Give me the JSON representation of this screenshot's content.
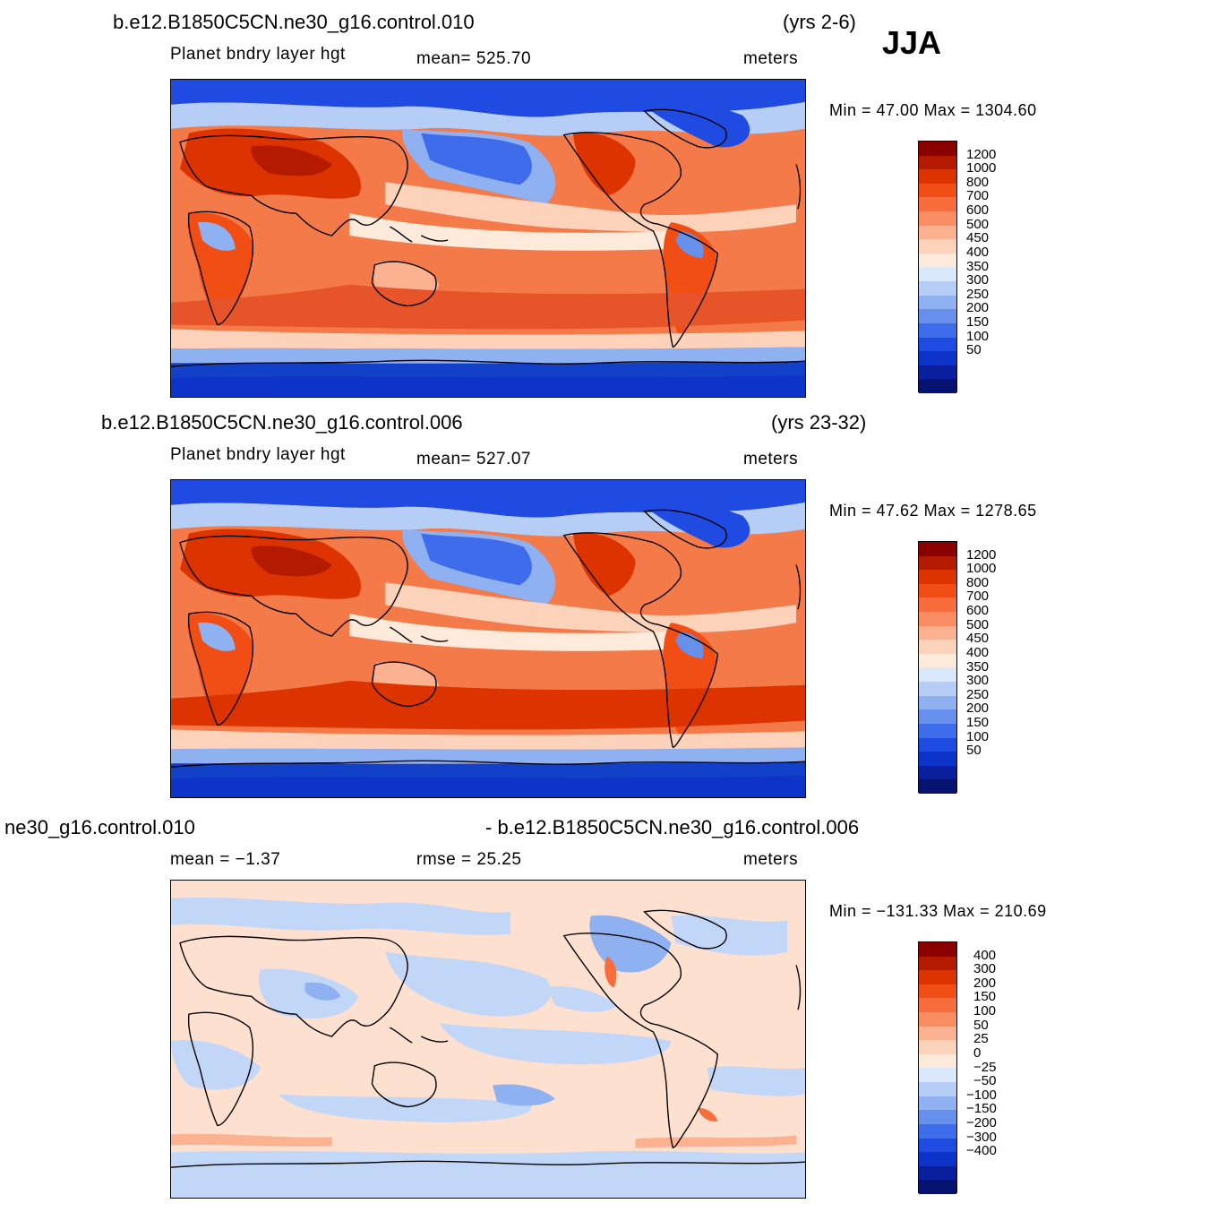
{
  "season": "JJA",
  "panels": [
    {
      "case_title": "b.e12.B1850C5CN.ne30_g16.control.010",
      "years": "(yrs 2-6)",
      "variable": "Planet  bndry  layer  hgt",
      "stat1": "mean=  525.70",
      "stat2": "",
      "units": "meters",
      "minmax": "Min  =    47.00  Max  =  1304.60"
    },
    {
      "case_title": "b.e12.B1850C5CN.ne30_g16.control.006",
      "years": "(yrs 23-32)",
      "variable": "Planet  bndry  layer  hgt",
      "stat1": "mean=  527.07",
      "stat2": "",
      "units": "meters",
      "minmax": "Min  =    47.62  Max  =  1278.65"
    },
    {
      "case_title": "ne30_g16.control.010",
      "case_title_right": "- b.e12.B1850C5CN.ne30_g16.control.006",
      "variable": "mean  =    −1.37",
      "stat2": "rmse  =    25.25",
      "units": "meters",
      "minmax": "Min  =  −131.33  Max  =  210.69"
    }
  ],
  "colorbar_abs": {
    "labels": [
      "1200",
      "1000",
      "800",
      "700",
      "600",
      "500",
      "450",
      "400",
      "350",
      "300",
      "250",
      "200",
      "150",
      "100",
      "50"
    ],
    "colors": [
      "#8b0000",
      "#b31a00",
      "#dd3300",
      "#f04e14",
      "#f76e3c",
      "#fa8e62",
      "#fcb190",
      "#fdd2bb",
      "#feeadb",
      "#d9e8fb",
      "#b6cdf6",
      "#8fb1f1",
      "#6690ec",
      "#3e6cea",
      "#1f4be3",
      "#0d33c9",
      "#0a1f9e",
      "#071270"
    ]
  },
  "colorbar_diff": {
    "labels": [
      "400",
      "300",
      "200",
      "150",
      "100",
      "50",
      "25",
      "0",
      "−25",
      "−50",
      "−100",
      "−150",
      "−200",
      "−300",
      "−400"
    ],
    "colors": [
      "#8b0000",
      "#b31a00",
      "#dd3300",
      "#f04e14",
      "#f76e3c",
      "#fa8e62",
      "#fcb190",
      "#fdd2bb",
      "#feeadb",
      "#d9e8fb",
      "#b6cdf6",
      "#8fb1f1",
      "#6690ec",
      "#3e6cea",
      "#1f4be3",
      "#0d33c9",
      "#0a1f9e",
      "#071270"
    ]
  },
  "colors": {
    "ocean_warm": "#e8542a",
    "land_warm": "#f47a4a",
    "polar_cold": "#1340c8",
    "coast": "#000000",
    "diff_background": "#fde0cf",
    "diff_blue": "#c2d7f7"
  }
}
